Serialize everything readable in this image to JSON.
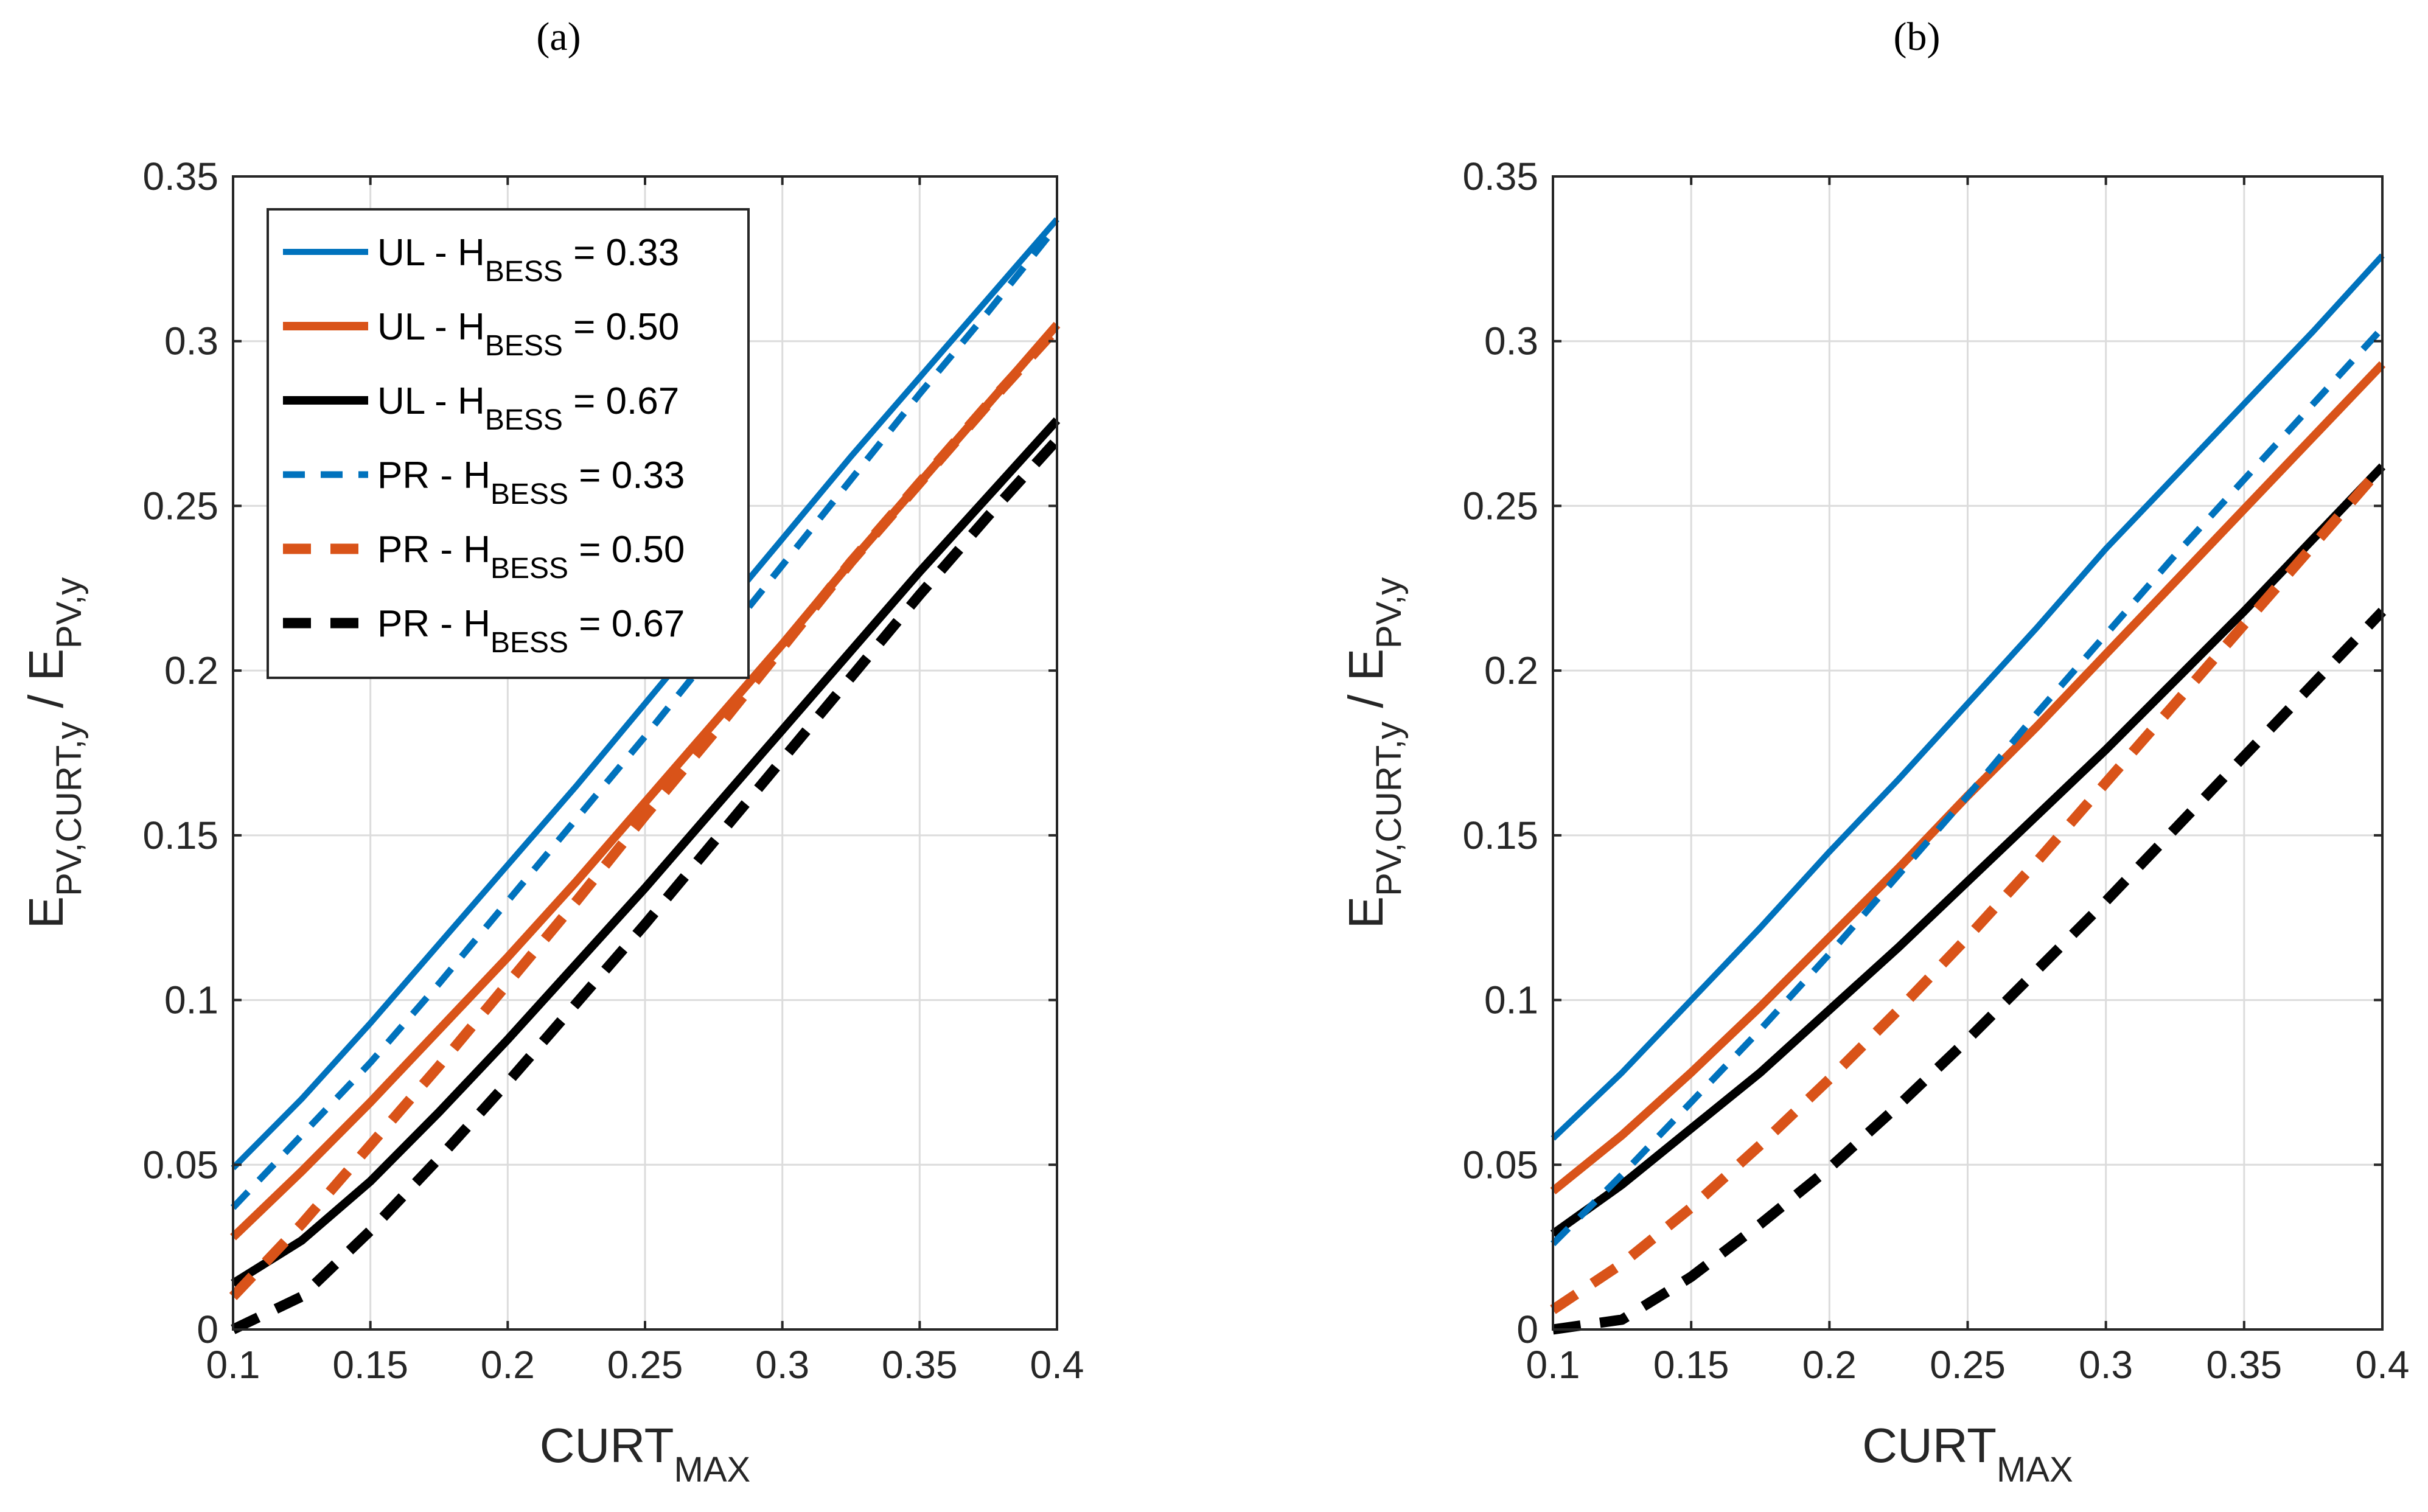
{
  "chart_data": [
    {
      "type": "line",
      "panel_label": "(a)",
      "xlabel": "CURT",
      "xlabel_sub": "MAX",
      "ylabel_main": "E",
      "ylabel_sub": "PV,CURT,y",
      "ylabel_sep": " / E",
      "ylabel_sub2": "PV,y",
      "xlim": [
        0.1,
        0.4
      ],
      "ylim": [
        0,
        0.35
      ],
      "grid": true,
      "legend_position": "top-left",
      "x_ticks": [
        "0.1",
        "0.15",
        "0.2",
        "0.25",
        "0.3",
        "0.35",
        "0.4"
      ],
      "y_ticks": [
        "0",
        "0.05",
        "0.1",
        "0.15",
        "0.2",
        "0.25",
        "0.3",
        "0.35"
      ],
      "x": [
        0.1,
        0.125,
        0.15,
        0.175,
        0.2,
        0.225,
        0.25,
        0.275,
        0.3,
        0.325,
        0.35,
        0.375,
        0.4
      ],
      "series": [
        {
          "name": "UL",
          "hvalue": "0.33",
          "color": "#0072BD",
          "style": "solid",
          "values": [
            0.049,
            0.07,
            0.093,
            0.117,
            0.141,
            0.165,
            0.19,
            0.215,
            0.24,
            0.265,
            0.289,
            0.313,
            0.337
          ]
        },
        {
          "name": "UL",
          "hvalue": "0.50",
          "color": "#D95319",
          "style": "solid",
          "values": [
            0.028,
            0.048,
            0.069,
            0.091,
            0.113,
            0.136,
            0.16,
            0.184,
            0.208,
            0.233,
            0.257,
            0.281,
            0.305
          ]
        },
        {
          "name": "UL",
          "hvalue": "0.67",
          "color": "#000000",
          "style": "solid",
          "values": [
            0.014,
            0.027,
            0.045,
            0.066,
            0.088,
            0.111,
            0.134,
            0.158,
            0.182,
            0.206,
            0.23,
            0.253,
            0.276
          ]
        },
        {
          "name": "PR",
          "hvalue": "0.33",
          "color": "#0072BD",
          "style": "dash",
          "values": [
            0.037,
            0.059,
            0.081,
            0.105,
            0.13,
            0.155,
            0.18,
            0.206,
            0.232,
            0.258,
            0.284,
            0.309,
            0.335
          ]
        },
        {
          "name": "PR",
          "hvalue": "0.50",
          "color": "#D95319",
          "style": "dash",
          "values": [
            0.01,
            0.032,
            0.056,
            0.08,
            0.105,
            0.13,
            0.156,
            0.181,
            0.207,
            0.233,
            0.257,
            0.281,
            0.304
          ]
        },
        {
          "name": "PR",
          "hvalue": "0.67",
          "color": "#000000",
          "style": "dash",
          "values": [
            0.0,
            0.01,
            0.03,
            0.052,
            0.075,
            0.099,
            0.123,
            0.148,
            0.173,
            0.198,
            0.223,
            0.247,
            0.27
          ]
        }
      ]
    },
    {
      "type": "line",
      "panel_label": "(b)",
      "xlabel": "CURT",
      "xlabel_sub": "MAX",
      "ylabel_main": "E",
      "ylabel_sub": "PV,CURT,y",
      "ylabel_sep": " / E",
      "ylabel_sub2": "PV,y",
      "xlim": [
        0.1,
        0.4
      ],
      "ylim": [
        0,
        0.35
      ],
      "grid": true,
      "x_ticks": [
        "0.1",
        "0.15",
        "0.2",
        "0.25",
        "0.3",
        "0.35",
        "0.4"
      ],
      "y_ticks": [
        "0",
        "0.05",
        "0.1",
        "0.15",
        "0.2",
        "0.25",
        "0.3",
        "0.35"
      ],
      "x": [
        0.1,
        0.125,
        0.15,
        0.175,
        0.2,
        0.225,
        0.25,
        0.275,
        0.3,
        0.325,
        0.35,
        0.375,
        0.4
      ],
      "series": [
        {
          "name": "UL",
          "hvalue": "0.33",
          "color": "#0072BD",
          "style": "solid",
          "values": [
            0.058,
            0.078,
            0.1,
            0.122,
            0.145,
            0.167,
            0.19,
            0.213,
            0.237,
            0.259,
            0.281,
            0.303,
            0.326
          ]
        },
        {
          "name": "UL",
          "hvalue": "0.50",
          "color": "#D95319",
          "style": "solid",
          "values": [
            0.042,
            0.059,
            0.078,
            0.098,
            0.119,
            0.14,
            0.162,
            0.183,
            0.205,
            0.227,
            0.249,
            0.271,
            0.293
          ]
        },
        {
          "name": "UL",
          "hvalue": "0.67",
          "color": "#000000",
          "style": "solid",
          "values": [
            0.029,
            0.044,
            0.061,
            0.078,
            0.097,
            0.116,
            0.136,
            0.156,
            0.176,
            0.197,
            0.218,
            0.24,
            0.262
          ]
        },
        {
          "name": "PR",
          "hvalue": "0.33",
          "color": "#0072BD",
          "style": "dash",
          "values": [
            0.026,
            0.047,
            0.069,
            0.091,
            0.114,
            0.138,
            0.162,
            0.187,
            0.211,
            0.235,
            0.258,
            0.281,
            0.304
          ]
        },
        {
          "name": "PR",
          "hvalue": "0.50",
          "color": "#D95319",
          "style": "dash",
          "values": [
            0.006,
            0.02,
            0.037,
            0.056,
            0.076,
            0.097,
            0.119,
            0.142,
            0.166,
            0.19,
            0.214,
            0.238,
            0.262
          ]
        },
        {
          "name": "PR",
          "hvalue": "0.67",
          "color": "#000000",
          "style": "dash",
          "values": [
            0.0,
            0.003,
            0.016,
            0.032,
            0.049,
            0.068,
            0.088,
            0.109,
            0.13,
            0.152,
            0.174,
            0.196,
            0.218
          ]
        }
      ]
    }
  ],
  "legend": {
    "h_main": "H",
    "h_sub": "BESS",
    "eq": " = "
  }
}
